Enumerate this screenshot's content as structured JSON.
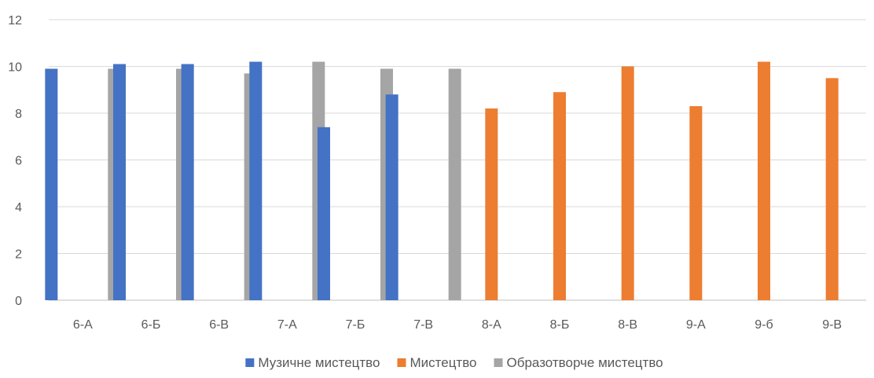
{
  "chart_data": {
    "type": "bar",
    "categories": [
      "6-А",
      "6-Б",
      "6-В",
      "7-А",
      "7-Б",
      "7-В",
      "8-А",
      "8-Б",
      "8-В",
      "9-А",
      "9-б",
      "9-В"
    ],
    "series": [
      {
        "name": "Музичне мистецтво",
        "color": "#4472c4",
        "values": [
          9.9,
          10.1,
          10.1,
          10.2,
          7.4,
          8.8,
          null,
          null,
          null,
          null,
          null,
          null
        ]
      },
      {
        "name": "Мистецтво",
        "color": "#ed7d31",
        "values": [
          null,
          null,
          null,
          null,
          null,
          null,
          8.2,
          8.9,
          10.0,
          8.3,
          10.2,
          9.5
        ]
      },
      {
        "name": "Образотворче мистецтво",
        "color": "#a5a5a5",
        "values": [
          9.9,
          9.9,
          9.7,
          10.2,
          9.9,
          9.9,
          null,
          null,
          null,
          null,
          null,
          null
        ]
      }
    ],
    "ylim": [
      0,
      12
    ],
    "yticks": [
      0,
      2,
      4,
      6,
      8,
      10,
      12
    ],
    "grid": true,
    "legend": "bottom",
    "title": "",
    "xlabel": "",
    "ylabel": ""
  }
}
